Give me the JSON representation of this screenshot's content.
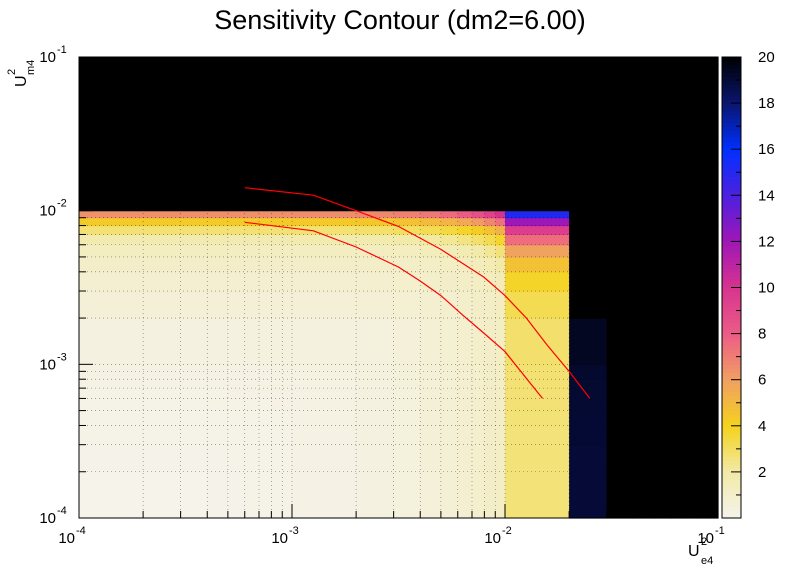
{
  "chart_data": {
    "type": "heatmap",
    "title": "Sensitivity Contour (dm2=6.00)",
    "xlabel": {
      "base": "U",
      "sup": "2",
      "sub": "e4"
    },
    "ylabel": {
      "base": "U",
      "sup": "2",
      "sub": "m4"
    },
    "x_scale": "log",
    "y_scale": "log",
    "xlim": [
      0.0001,
      0.1
    ],
    "ylim": [
      0.0001,
      0.1
    ],
    "grid": true,
    "x_ticks": [
      {
        "base": "10",
        "exp": "-4"
      },
      {
        "base": "10",
        "exp": "-3"
      },
      {
        "base": "10",
        "exp": "-2"
      },
      {
        "base": "10",
        "exp": "-1"
      }
    ],
    "y_ticks": [
      {
        "base": "10",
        "exp": "-4"
      },
      {
        "base": "10",
        "exp": "-3"
      },
      {
        "base": "10",
        "exp": "-2"
      },
      {
        "base": "10",
        "exp": "-1"
      }
    ],
    "z_range": [
      0,
      20
    ],
    "colorbar_ticks": [
      "2",
      "4",
      "6",
      "8",
      "10",
      "12",
      "14",
      "16",
      "18",
      "20"
    ],
    "palette": [
      "#f5f3ec",
      "#f2eaa8",
      "#f4d21c",
      "#f0a062",
      "#ec5c86",
      "#d7348e",
      "#a017b6",
      "#4c20e0",
      "#0030ff",
      "#0a1670",
      "#000000"
    ],
    "contours": [
      {
        "color": "#ff0000",
        "x": [
          0.0006,
          0.00126,
          0.002,
          0.00316,
          0.005,
          0.00794,
          0.01,
          0.0126,
          0.0158,
          0.02,
          0.025
        ],
        "y": [
          0.0141,
          0.0126,
          0.01,
          0.0079,
          0.0056,
          0.0037,
          0.0028,
          0.002,
          0.00133,
          0.0009,
          0.0006
        ]
      },
      {
        "color": "#ff0000",
        "x": [
          0.0006,
          0.00126,
          0.002,
          0.00316,
          0.00398,
          0.005,
          0.00631,
          0.00794,
          0.01,
          0.0126,
          0.015
        ],
        "y": [
          0.0084,
          0.0074,
          0.0058,
          0.0043,
          0.0035,
          0.0028,
          0.0021,
          0.0016,
          0.00121,
          0.00081,
          0.0006
        ]
      }
    ]
  }
}
